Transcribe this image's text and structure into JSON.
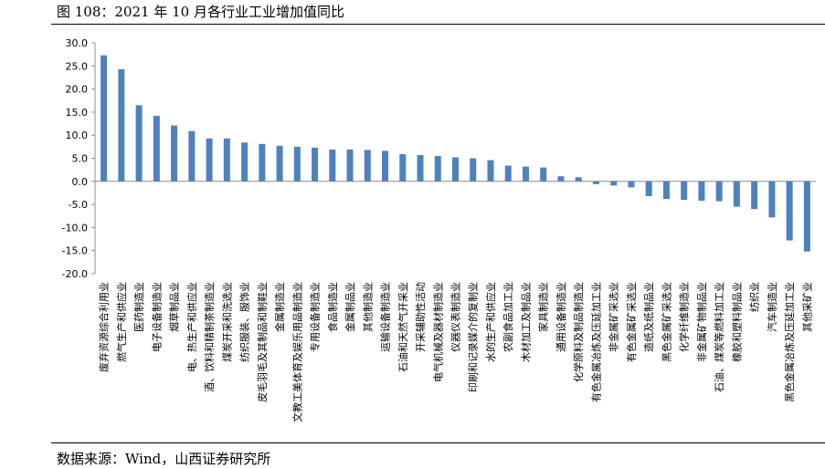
{
  "header": {
    "title": "图 108：2021 年 10 月各行业工业增加值同比"
  },
  "footer": {
    "source": "数据来源：Wind，山西证券研究所"
  },
  "chart_data": {
    "type": "bar",
    "title": "",
    "xlabel": "",
    "ylabel": "",
    "ylim": [
      -20,
      30
    ],
    "yticks": [
      30,
      25,
      20,
      15,
      10,
      5,
      0,
      -5,
      -10,
      -15,
      -20
    ],
    "ytick_labels": [
      "30.0",
      "25.0",
      "20.0",
      "15.0",
      "10.0",
      "5.0",
      "0.0",
      "-5.0",
      "-10.0",
      "-15.0",
      "-20.0"
    ],
    "grid": false,
    "legend": false,
    "bar_color": "#4f81bd",
    "categories": [
      "废弃资源综合利用业",
      "燃气生产和供应业",
      "医药制造业",
      "电子设备制造业",
      "烟草制品业",
      "电、热生产和供应业",
      "酒、饮料和精制茶制造业",
      "煤炭开采和洗选业",
      "纺织服装、服饰业",
      "皮毛羽毛及其制品和制鞋业",
      "金属制造业",
      "文教工美体育及娱乐用品制造业",
      "专用设备制造业",
      "食品制造业",
      "金属制品业",
      "其他制造业",
      "运输设备制造业",
      "石油和天然气开采业",
      "开采辅助性活动",
      "电气机械及器材制造业",
      "仪器仪表制造业",
      "印刷和记录媒介的复制业",
      "水的生产和供应业",
      "农副食品加工业",
      "木材加工及制品业",
      "家具制造业",
      "通用设备制造业",
      "化学原料及制品制造业",
      "有色金属冶炼及压延加工业",
      "非金属矿采选业",
      "有色金属矿采选业",
      "造纸及纸制品业",
      "黑色金属矿采选业",
      "化学纤维制造业",
      "非金属矿物制品业",
      "石油、煤炭等燃料加工业",
      "橡胶和塑料制品业",
      "纺织业",
      "汽车制造业",
      "黑色金属冶炼及压延加工业",
      "其他采矿业"
    ],
    "values": [
      27.3,
      24.3,
      16.5,
      14.2,
      12.1,
      10.9,
      9.3,
      9.3,
      8.4,
      8.1,
      7.7,
      7.5,
      7.3,
      6.9,
      6.9,
      6.8,
      6.6,
      5.9,
      5.7,
      5.5,
      5.2,
      5.0,
      4.6,
      3.4,
      3.2,
      3.0,
      1.1,
      0.9,
      -0.6,
      -0.9,
      -1.3,
      -3.2,
      -3.8,
      -4.0,
      -4.2,
      -4.3,
      -5.5,
      -6.0,
      -7.8,
      -12.8,
      -15.2
    ]
  }
}
